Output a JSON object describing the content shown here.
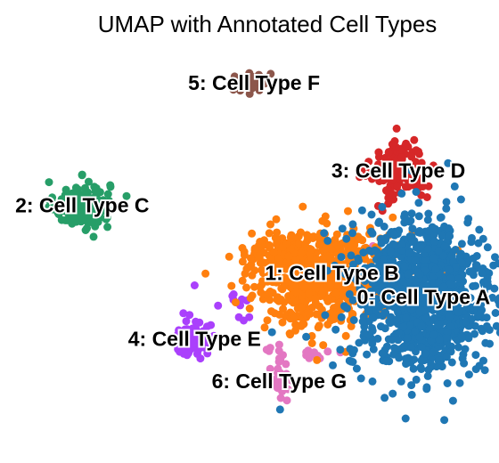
{
  "chart_data": {
    "type": "scatter",
    "title": "UMAP with Annotated Cell Types",
    "xlabel": "",
    "ylabel": "",
    "grid": false,
    "axes_visible": false,
    "legend": "on data",
    "xlim": [
      -10.5,
      10.5
    ],
    "ylim": [
      -11,
      11
    ],
    "point_radius": 4.5,
    "clusters": [
      {
        "id": 0,
        "label": "0: Cell Type A",
        "color": "#1f77b4",
        "centroid": [
          7.6,
          -2.4
        ],
        "spread": [
          1.6,
          2.2
        ],
        "n_points": 700,
        "blobs": [
          {
            "center": [
              7.2,
              -1.2
            ],
            "spread": [
              1.4,
              1.4
            ],
            "n": 250
          },
          {
            "center": [
              7.9,
              -4.4
            ],
            "spread": [
              1.1,
              0.9
            ],
            "n": 120
          }
        ]
      },
      {
        "id": 1,
        "label": "1: Cell Type B",
        "color": "#ff7f0e",
        "centroid": [
          3.6,
          -1.1
        ],
        "spread": [
          1.9,
          1.2
        ],
        "n_points": 500,
        "blobs": [
          {
            "center": [
              2.6,
              -2.9
            ],
            "spread": [
              0.9,
              1.1
            ],
            "n": 90
          },
          {
            "center": [
              2.0,
              0.0
            ],
            "spread": [
              1.0,
              0.5
            ],
            "n": 80
          }
        ]
      },
      {
        "id": 2,
        "label": "2: Cell Type C",
        "color": "#279e68",
        "centroid": [
          -7.3,
          2.6
        ],
        "spread": [
          0.6,
          0.65
        ],
        "n_points": 160
      },
      {
        "id": 3,
        "label": "3: Cell Type D",
        "color": "#d62728",
        "centroid": [
          6.5,
          4.5
        ],
        "spread": [
          0.6,
          0.85
        ],
        "n_points": 130
      },
      {
        "id": 4,
        "label": "4: Cell Type E",
        "color": "#aa40fc",
        "centroid": [
          -2.4,
          -4.7
        ],
        "spread": [
          0.45,
          0.5
        ],
        "n_points": 90,
        "blobs": [
          {
            "center": [
              -0.6,
              -2.8
            ],
            "spread": [
              0.7,
              0.65
            ],
            "n": 12
          }
        ]
      },
      {
        "id": 5,
        "label": "5: Cell Type F",
        "color": "#8c564b",
        "centroid": [
          0.2,
          9.3
        ],
        "spread": [
          0.35,
          0.45
        ],
        "n_points": 30
      },
      {
        "id": 6,
        "label": "6: Cell Type G",
        "color": "#e377c2",
        "centroid": [
          1.3,
          -7.0
        ],
        "spread": [
          0.3,
          0.9
        ],
        "n_points": 30,
        "blobs": [
          {
            "center": [
              2.8,
              -5.4
            ],
            "spread": [
              0.7,
              0.2
            ],
            "n": 12
          },
          {
            "center": [
              5.3,
              0.3
            ],
            "spread": [
              0.15,
              0.15
            ],
            "n": 2
          }
        ]
      }
    ]
  }
}
